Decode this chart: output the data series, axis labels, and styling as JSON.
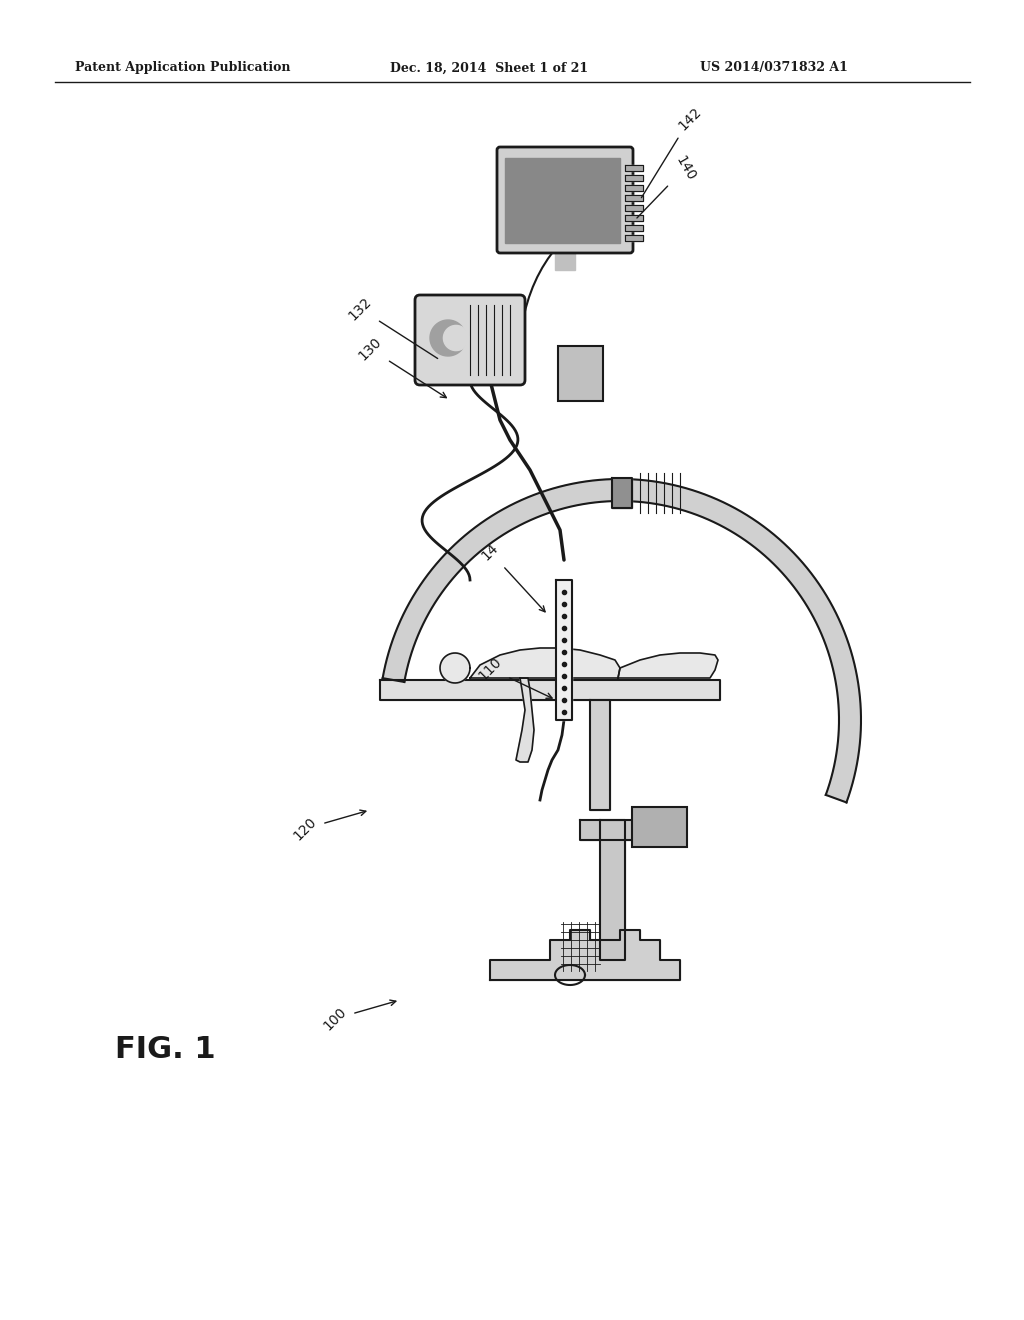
{
  "bg_color": "#ffffff",
  "header_left": "Patent Application Publication",
  "header_mid": "Dec. 18, 2014  Sheet 1 of 21",
  "header_right": "US 2014/0371832 A1",
  "fig_label": "FIG. 1",
  "ref_100": "100",
  "ref_14": "14",
  "ref_110": "110",
  "ref_120": "120",
  "ref_130": "130",
  "ref_132": "132",
  "ref_140": "140",
  "ref_142": "142"
}
